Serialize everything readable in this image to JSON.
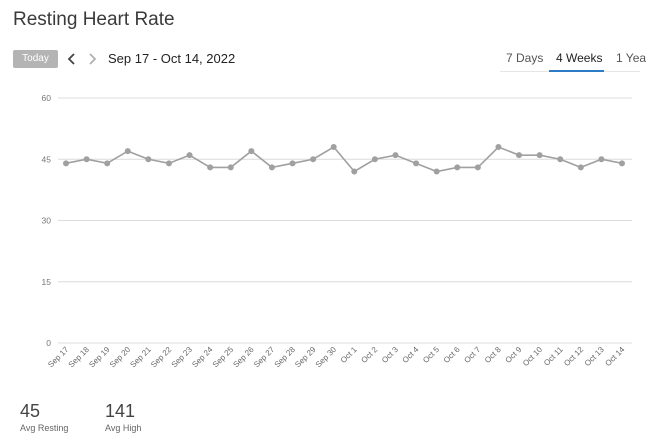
{
  "header": {
    "title": "Resting Heart Rate"
  },
  "toolbar": {
    "today_label": "Today",
    "date_range": "Sep 17 - Oct 14, 2022",
    "tabs": [
      {
        "label": "7 Days",
        "active": false
      },
      {
        "label": "4 Weeks",
        "active": true
      },
      {
        "label": "1 Yea",
        "active": false
      }
    ]
  },
  "icons": {
    "prev": "chevron-left-icon",
    "next": "chevron-right-icon"
  },
  "colors": {
    "accent": "#2c7bc7",
    "line": "#a0a0a0",
    "grid": "#dcdcdc"
  },
  "chart_data": {
    "type": "line",
    "categories": [
      "Sep 17",
      "Sep 18",
      "Sep 19",
      "Sep 20",
      "Sep 21",
      "Sep 22",
      "Sep 23",
      "Sep 24",
      "Sep 25",
      "Sep 26",
      "Sep 27",
      "Sep 28",
      "Sep 29",
      "Sep 30",
      "Oct 1",
      "Oct 2",
      "Oct 3",
      "Oct 4",
      "Oct 5",
      "Oct 6",
      "Oct 7",
      "Oct 8",
      "Oct 9",
      "Oct 10",
      "Oct 11",
      "Oct 12",
      "Oct 13",
      "Oct 14"
    ],
    "values": [
      44,
      45,
      44,
      47,
      45,
      44,
      46,
      43,
      43,
      47,
      43,
      44,
      45,
      48,
      42,
      45,
      46,
      44,
      42,
      43,
      43,
      48,
      46,
      46,
      45,
      43,
      45,
      44
    ],
    "yticks": [
      0,
      15,
      30,
      45,
      60
    ],
    "ylim": [
      0,
      60
    ],
    "grid": true,
    "legend": "none"
  },
  "stats": [
    {
      "value": "45",
      "label": "Avg Resting"
    },
    {
      "value": "141",
      "label": "Avg High"
    }
  ]
}
